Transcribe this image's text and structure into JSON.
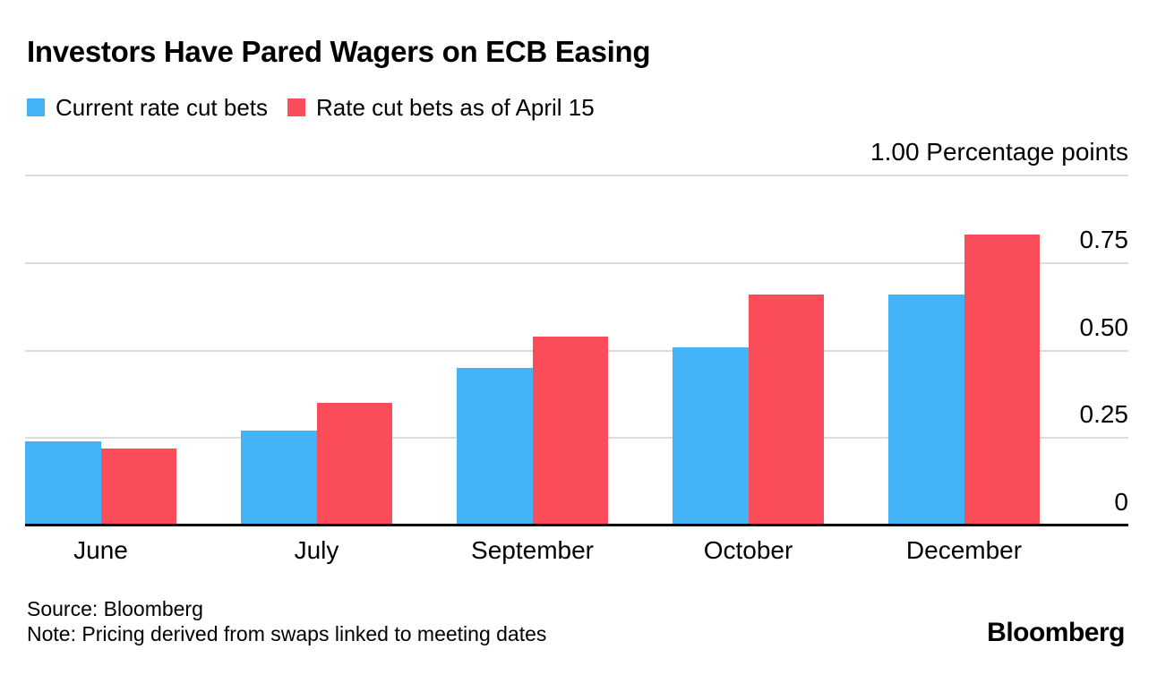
{
  "header": {
    "title": "Investors Have Pared Wagers on ECB Easing"
  },
  "legend": {
    "items": [
      {
        "label": "Current rate cut bets",
        "color": "#45B3F7"
      },
      {
        "label": "Rate cut bets as of April 15",
        "color": "#FB4D59"
      }
    ]
  },
  "chart_data": {
    "type": "bar",
    "categories": [
      "June",
      "July",
      "September",
      "October",
      "December"
    ],
    "series": [
      {
        "name": "Current rate cut bets",
        "color": "#45B3F7",
        "values": [
          0.24,
          0.27,
          0.45,
          0.51,
          0.66
        ]
      },
      {
        "name": "Rate cut bets as of April 15",
        "color": "#FB4D59",
        "values": [
          0.22,
          0.35,
          0.54,
          0.66,
          0.83
        ]
      }
    ],
    "title": "Investors Have Pared Wagers on ECB Easing",
    "ylabel": "Percentage points",
    "ylim": [
      0,
      1.0
    ],
    "yticks": [
      {
        "value": 1.0,
        "label": "1.00 Percentage points"
      },
      {
        "value": 0.75,
        "label": "0.75"
      },
      {
        "value": 0.5,
        "label": "0.50"
      },
      {
        "value": 0.25,
        "label": "0.25"
      },
      {
        "value": 0,
        "label": "0"
      }
    ],
    "grid": "horizontal",
    "legend_position": "top-left"
  },
  "footer": {
    "source": "Source: Bloomberg",
    "note": "Note: Pricing derived from swaps linked to meeting dates",
    "logo": "Bloomberg"
  }
}
